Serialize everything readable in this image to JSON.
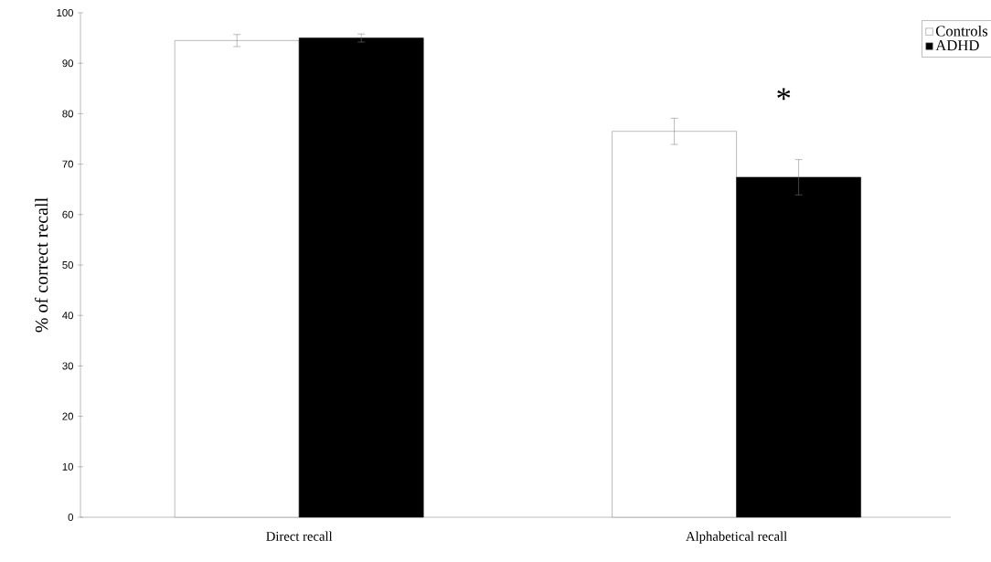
{
  "chart_data": {
    "type": "bar",
    "ylabel": "% of correct recall",
    "categories": [
      "Direct recall",
      "Alphabetical recall"
    ],
    "series": [
      {
        "name": "Controls",
        "color": "#ffffff",
        "values": [
          94.5,
          76.5
        ],
        "errors": [
          1.2,
          2.6
        ]
      },
      {
        "name": "ADHD",
        "color": "#000000",
        "values": [
          95.0,
          67.4
        ],
        "errors": [
          0.8,
          3.5
        ]
      }
    ],
    "ylim": [
      0,
      100
    ],
    "yticks": [
      0,
      10,
      20,
      30,
      40,
      50,
      60,
      70,
      80,
      90,
      100
    ],
    "legend": "top right",
    "annotations": [
      "*"
    ]
  }
}
